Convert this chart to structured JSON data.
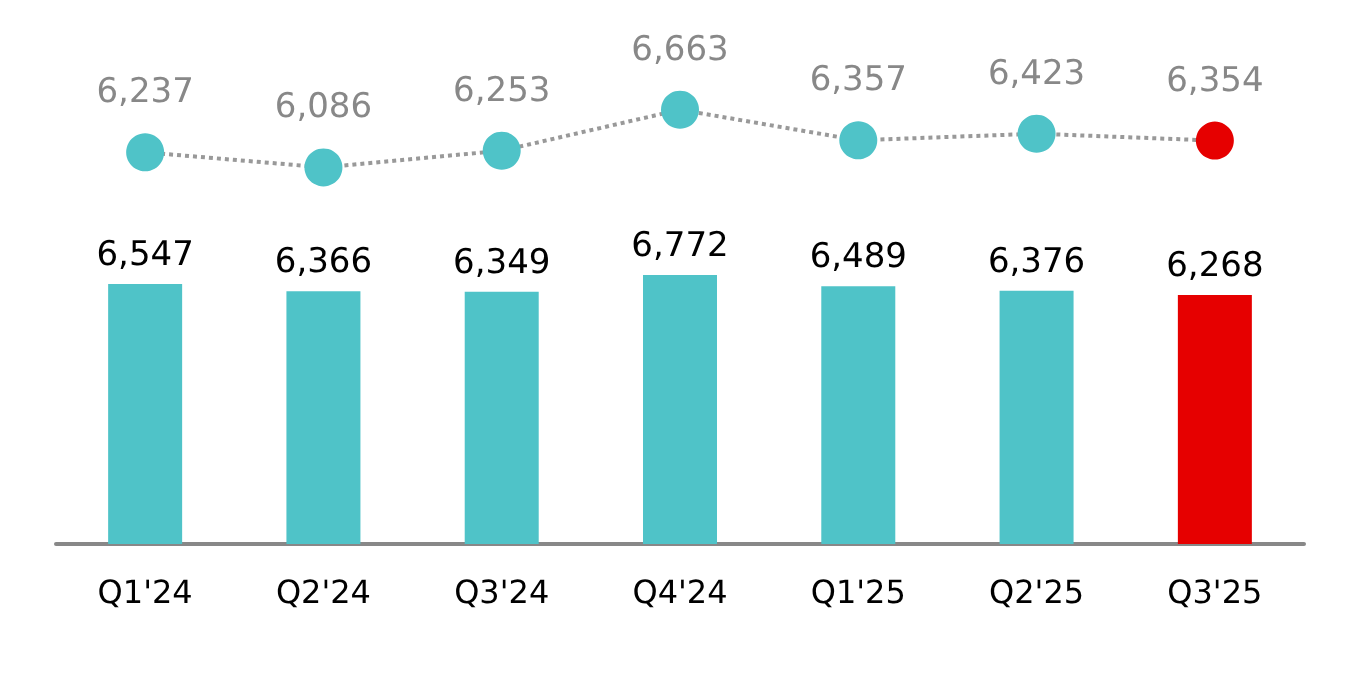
{
  "chart_data": [
    {
      "type": "line",
      "categories": [
        null,
        null,
        null,
        null,
        null,
        null,
        null
      ],
      "tick_labels": false,
      "series": [
        {
          "color": "#999999",
          "line_style": "dotted",
          "marker": "circle",
          "values": [
            6237,
            6086,
            6253,
            6663,
            6357,
            6423,
            6354
          ],
          "value_labels": [
            "6,237",
            "6,086",
            "6,253",
            "6,663",
            "6,357",
            "6,423",
            "6,354"
          ],
          "colors": [
            "#4fc3c8",
            "#4fc3c8",
            "#4fc3c8",
            "#4fc3c8",
            "#4fc3c8",
            "#4fc3c8",
            "#e60000"
          ]
        }
      ]
    },
    {
      "type": "bar",
      "categories": [
        "Q1'24",
        "Q2'24",
        "Q3'24",
        "Q4'24",
        "Q1'25",
        "Q2'25",
        "Q3'25"
      ],
      "tick_labels": "x",
      "series": [
        {
          "values": [
            6547,
            6366,
            6349,
            6772,
            6489,
            6376,
            6268
          ],
          "value_labels": [
            "6,547",
            "6,366",
            "6,349",
            "6,772",
            "6,489",
            "6,376",
            "6,268"
          ],
          "colors": [
            "#4fc3c8",
            "#4fc3c8",
            "#4fc3c8",
            "#4fc3c8",
            "#4fc3c8",
            "#4fc3c8",
            "#e60000"
          ]
        }
      ]
    }
  ]
}
